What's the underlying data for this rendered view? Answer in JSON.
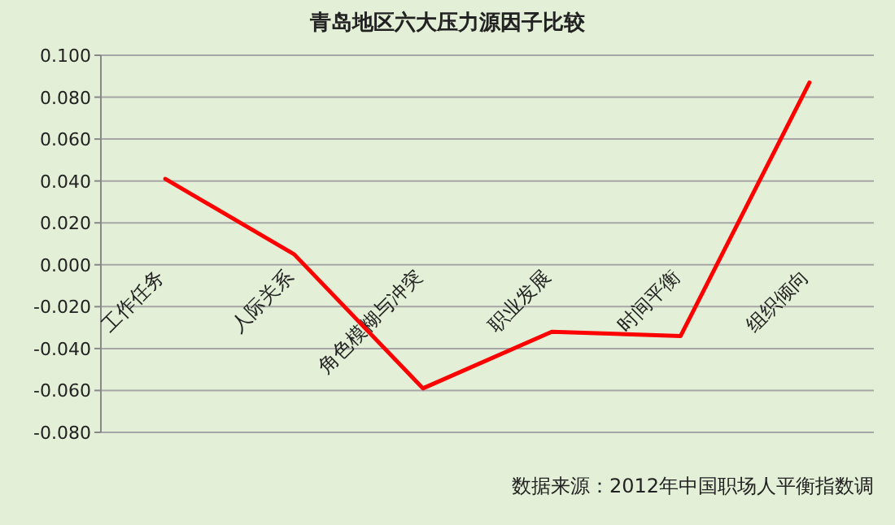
{
  "chart_data": {
    "type": "line",
    "title": "青岛地区六大压力源因子比较",
    "categories": [
      "工作任务",
      "人际关系",
      "角色模糊与冲突",
      "职业发展",
      "时间平衡",
      "组织倾向"
    ],
    "series": [
      {
        "color": "#ff0000",
        "values": [
          0.041,
          0.005,
          -0.059,
          -0.032,
          -0.034,
          0.087
        ]
      }
    ],
    "ylim": [
      -0.08,
      0.1
    ],
    "yticks": [
      {
        "value": -0.08,
        "label": "-0.080"
      },
      {
        "value": -0.06,
        "label": "-0.060"
      },
      {
        "value": -0.04,
        "label": "-0.040"
      },
      {
        "value": -0.02,
        "label": "-0.020"
      },
      {
        "value": 0,
        "label": "0.000"
      },
      {
        "value": 0.02,
        "label": "0.020"
      },
      {
        "value": 0.04,
        "label": "0.040"
      },
      {
        "value": 0.06,
        "label": "0.060"
      },
      {
        "value": 0.08,
        "label": "0.080"
      },
      {
        "value": 0.1,
        "label": "0.100"
      }
    ],
    "grid": "y",
    "marker": "none",
    "line_style": "solid",
    "annotations": [
      "数据来源：2012年中国职场人平衡指数调"
    ]
  }
}
